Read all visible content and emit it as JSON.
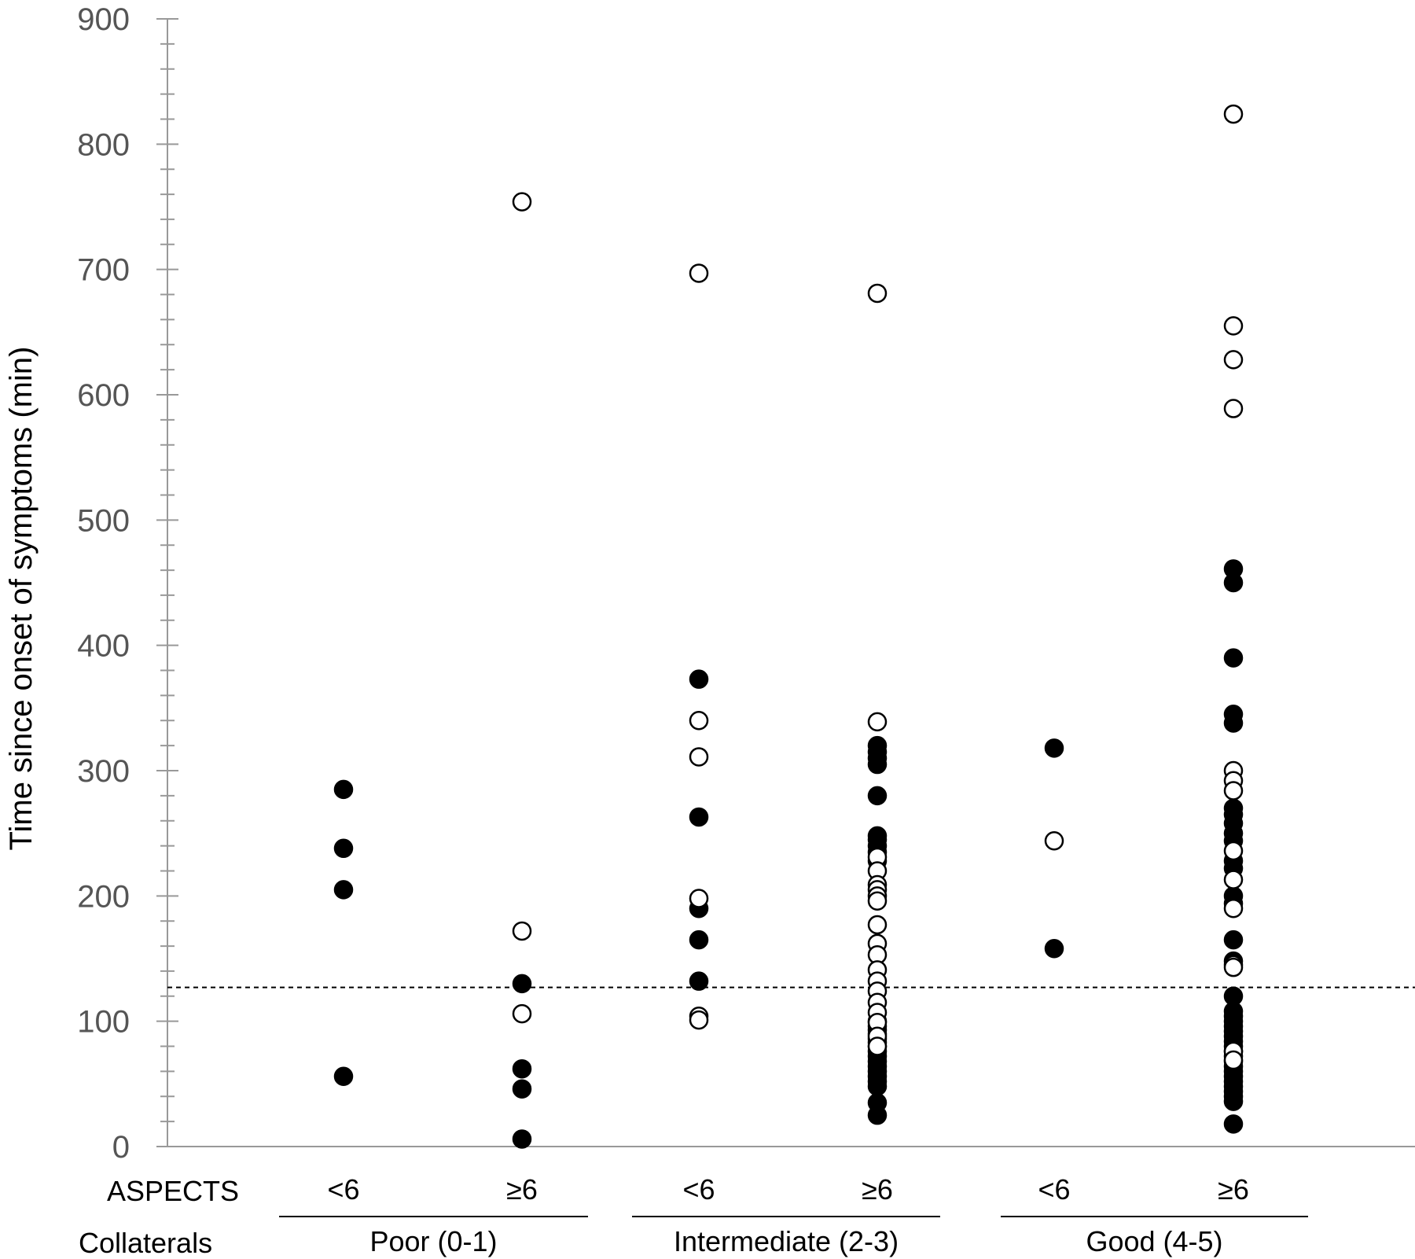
{
  "chart_data": {
    "type": "scatter",
    "title": "",
    "ylabel": "Time since onset of symptoms (min)",
    "ylim": [
      0,
      900
    ],
    "yticks": [
      0,
      100,
      200,
      300,
      400,
      500,
      600,
      700,
      800,
      900
    ],
    "reference_line_y": 127,
    "row_labels": {
      "aspects": "ASPECTS",
      "collaterals": "Collaterals"
    },
    "groups": [
      {
        "collaterals": "Poor (0-1)",
        "columns": [
          {
            "aspects": "<6",
            "filled": [
              285,
              238,
              205,
              56
            ],
            "open": []
          },
          {
            "aspects": "≥6",
            "filled": [
              130,
              62,
              46,
              6
            ],
            "open": [
              754,
              172,
              106
            ]
          }
        ]
      },
      {
        "collaterals": "Intermediate (2-3)",
        "columns": [
          {
            "aspects": "<6",
            "filled": [
              373,
              263,
              190,
              165,
              132
            ],
            "open": [
              697,
              340,
              311,
              198,
              104,
              101
            ]
          },
          {
            "aspects": "≥6",
            "filled": [
              320,
              315,
              310,
              305,
              280,
              248,
              245,
              240,
              235,
              228,
              100,
              96,
              93,
              90,
              86,
              83,
              80,
              76,
              72,
              68,
              64,
              60,
              56,
              52,
              48,
              35,
              25
            ],
            "open": [
              681,
              339,
              231,
              220,
              209,
              205,
              200,
              196,
              177,
              162,
              153,
              141,
              132,
              124,
              115,
              107,
              99,
              88,
              80
            ]
          }
        ]
      },
      {
        "collaterals": "Good (4-5)",
        "columns": [
          {
            "aspects": "<6",
            "filled": [
              318,
              158
            ],
            "open": [
              244
            ]
          },
          {
            "aspects": "≥6",
            "filled": [
              461,
              450,
              390,
              345,
              338,
              270,
              265,
              258,
              250,
              244,
              228,
              222,
              200,
              194,
              165,
              148,
              120,
              108,
              104,
              100,
              96,
              92,
              88,
              84,
              80,
              76,
              72,
              68,
              64,
              60,
              56,
              52,
              48,
              44,
              40,
              36,
              18
            ],
            "open": [
              824,
              655,
              628,
              589,
              300,
              292,
              284,
              236,
              213,
              190,
              145,
              143,
              76,
              69
            ]
          }
        ]
      }
    ]
  }
}
